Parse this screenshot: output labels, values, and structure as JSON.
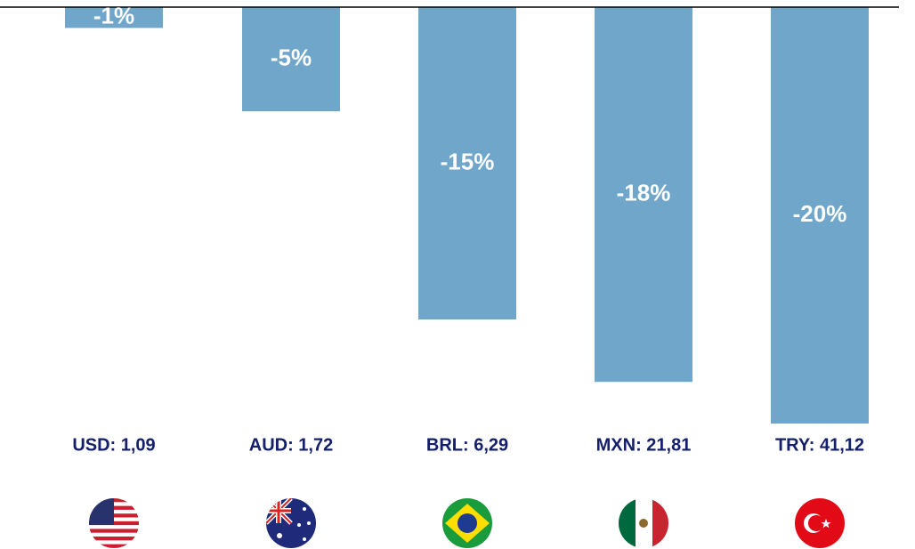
{
  "chart_data": {
    "type": "bar",
    "categories": [
      "USD: 1,09",
      "AUD: 1,72",
      "BRL: 6,29",
      "MXN: 21,81",
      "TRY: 41,12"
    ],
    "values": [
      -1,
      -5,
      -15,
      -18,
      -20
    ],
    "value_labels": [
      "-1%",
      "-5%",
      "-15%",
      "-18%",
      "-20%"
    ],
    "color": "#6fa6c9",
    "ylim": [
      -20,
      0
    ]
  }
}
